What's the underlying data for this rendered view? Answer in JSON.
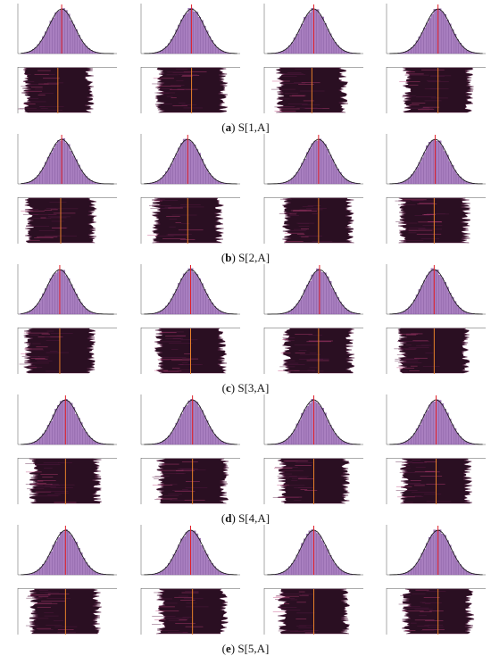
{
  "figure": {
    "panels": [
      {
        "letter": "a",
        "caption": "S[1,A]",
        "hist_centers": [
          0.44,
          0.51,
          0.5,
          0.52
        ],
        "trace_centers": [
          0.4,
          0.51,
          0.48,
          0.52
        ]
      },
      {
        "letter": "b",
        "caption": "S[2,A]",
        "hist_centers": [
          0.44,
          0.47,
          0.55,
          0.49
        ],
        "trace_centers": [
          0.43,
          0.47,
          0.55,
          0.48
        ]
      },
      {
        "letter": "c",
        "caption": "S[3,A]",
        "hist_centers": [
          0.42,
          0.5,
          0.56,
          0.48
        ],
        "trace_centers": [
          0.42,
          0.5,
          0.55,
          0.48
        ]
      },
      {
        "letter": "d",
        "caption": "S[4,A]",
        "hist_centers": [
          0.48,
          0.52,
          0.5,
          0.5
        ],
        "trace_centers": [
          0.48,
          0.52,
          0.5,
          0.5
        ]
      },
      {
        "letter": "e",
        "caption": "S[5,A]",
        "hist_centers": [
          0.48,
          0.5,
          0.5,
          0.52
        ],
        "trace_centers": [
          0.48,
          0.52,
          0.5,
          0.52
        ]
      }
    ]
  },
  "colors": {
    "hist_fill": "#a97fc0",
    "hist_bar_line": "#7a4f96",
    "density_curve": "#111111",
    "mean_line": "#e0202a",
    "trace_fill": "#2a0f22",
    "trace_noise": "#5a1a44",
    "axis": "#555555"
  },
  "chart_data": {
    "type": "histogram-and-trace-grid",
    "description_of_layout": "",
    "panels": [
      "S[1,A]",
      "S[2,A]",
      "S[3,A]",
      "S[4,A]",
      "S[5,A]"
    ],
    "columns": 4
  }
}
